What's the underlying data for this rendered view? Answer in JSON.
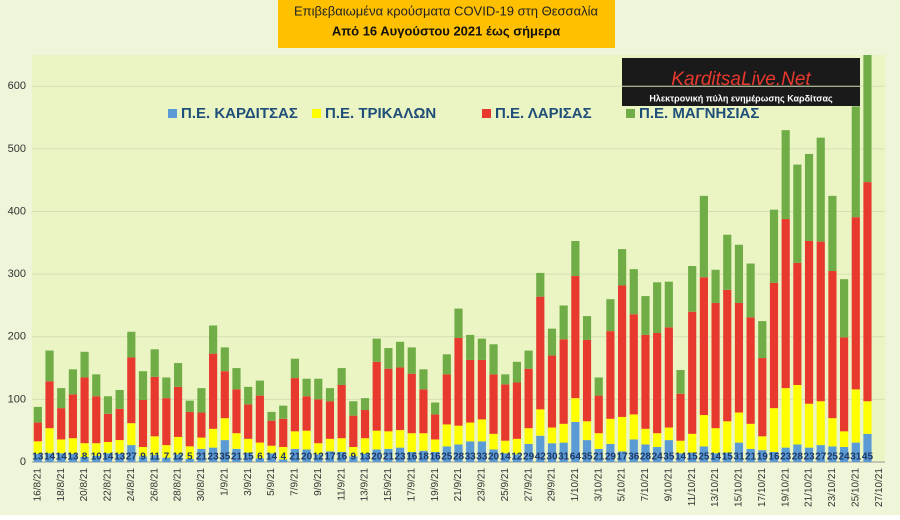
{
  "chart_data": {
    "type": "stacked_bar",
    "title": "Επιβεβαιωμένα κρούσματα COVID-19 στη Θεσσαλία",
    "subtitle": "Από 16 Αυγούστου 2021 έως σήμερα",
    "logo": {
      "name": "KarditsaLive.Net",
      "tagline": "Ηλεκτρονική πύλη ενημέρωσης Καρδίτσας"
    },
    "categories": [
      "16/8/21",
      null,
      "18/8/21",
      null,
      "20/8/21",
      null,
      "22/8/21",
      null,
      "24/8/21",
      null,
      "26/8/21",
      null,
      "28/8/21",
      null,
      "30/8/21",
      null,
      "1/9/21",
      null,
      "3/9/21",
      null,
      "5/9/21",
      null,
      "7/9/21",
      null,
      "9/9/21",
      null,
      "11/9/21",
      null,
      "13/9/21",
      null,
      "15/9/21",
      null,
      "17/9/21",
      null,
      "19/9/21",
      null,
      "21/9/21",
      null,
      "23/9/21",
      null,
      "25/9/21",
      null,
      "27/9/21",
      null,
      "29/9/21",
      null,
      "1/10/21",
      null,
      "3/10/21",
      null,
      "5/10/21",
      null,
      "7/10/21",
      null,
      "9/10/21",
      null,
      "11/10/21",
      null,
      "13/10/21",
      null,
      "15/10/21",
      null,
      "17/10/21",
      null,
      "19/10/21",
      null,
      "21/10/21",
      null,
      "23/10/21",
      null,
      "25/10/21",
      null,
      "27/10/21"
    ],
    "series": [
      {
        "name": "Π.Ε. ΚΑΡΔΙΤΣΑΣ",
        "color": "#5b9bd5",
        "values": [
          13,
          14,
          14,
          13,
          8,
          10,
          14,
          13,
          27,
          9,
          11,
          7,
          12,
          5,
          21,
          23,
          35,
          21,
          15,
          6,
          14,
          4,
          21,
          20,
          12,
          17,
          16,
          9,
          13,
          20,
          21,
          23,
          16,
          18,
          16,
          25,
          28,
          33,
          33,
          20,
          14,
          12,
          29,
          42,
          30,
          31,
          64,
          35,
          21,
          29,
          17,
          36,
          28,
          24,
          35,
          14,
          15,
          25,
          14,
          15,
          31,
          21,
          19,
          16,
          23,
          28,
          23,
          27,
          25,
          24,
          31,
          45,
          null
        ]
      },
      {
        "name": "Π.Ε. ΤΡΙΚΑΛΩΝ",
        "color": "#ffff00",
        "values": [
          20,
          40,
          22,
          25,
          22,
          20,
          18,
          22,
          35,
          15,
          30,
          20,
          28,
          20,
          18,
          30,
          35,
          25,
          22,
          25,
          12,
          20,
          28,
          30,
          18,
          20,
          22,
          15,
          25,
          30,
          28,
          28,
          30,
          28,
          20,
          35,
          30,
          30,
          35,
          25,
          20,
          25,
          25,
          42,
          25,
          30,
          38,
          30,
          25,
          40,
          55,
          40,
          25,
          22,
          20,
          20,
          30,
          50,
          40,
          50,
          48,
          40,
          22,
          70,
          95,
          95,
          70,
          70,
          45,
          25,
          85,
          52,
          null
        ]
      },
      {
        "name": "Π.Ε. ΛΑΡΙΣΑΣ",
        "color": "#e8392e",
        "values": [
          30,
          75,
          50,
          70,
          105,
          75,
          45,
          50,
          105,
          75,
          95,
          75,
          80,
          55,
          40,
          120,
          75,
          70,
          55,
          75,
          40,
          45,
          85,
          55,
          70,
          60,
          85,
          50,
          45,
          110,
          100,
          100,
          95,
          70,
          40,
          80,
          140,
          100,
          95,
          95,
          90,
          90,
          95,
          180,
          115,
          135,
          195,
          130,
          60,
          140,
          210,
          160,
          150,
          160,
          160,
          75,
          195,
          220,
          200,
          210,
          175,
          170,
          125,
          200,
          270,
          195,
          260,
          255,
          235,
          150,
          275,
          350,
          null
        ]
      },
      {
        "name": "Π.Ε. ΜΑΓΝΗΣΙΑΣ",
        "color": "#70ad47",
        "values": [
          25,
          49,
          32,
          40,
          41,
          35,
          28,
          30,
          41,
          46,
          44,
          33,
          38,
          18,
          39,
          45,
          38,
          34,
          28,
          24,
          14,
          21,
          31,
          28,
          33,
          21,
          27,
          23,
          19,
          37,
          33,
          41,
          42,
          32,
          19,
          32,
          47,
          40,
          34,
          48,
          16,
          33,
          29,
          38,
          43,
          54,
          56,
          38,
          29,
          51,
          58,
          72,
          62,
          81,
          73,
          38,
          73,
          130,
          53,
          88,
          93,
          86,
          59,
          117,
          142,
          157,
          139,
          166,
          120,
          93,
          177,
          203,
          null
        ]
      }
    ],
    "ylim": [
      0,
      650
    ],
    "yticks": [
      0,
      100,
      200,
      300,
      400,
      500,
      600
    ],
    "grid": true,
    "legend": "top"
  }
}
